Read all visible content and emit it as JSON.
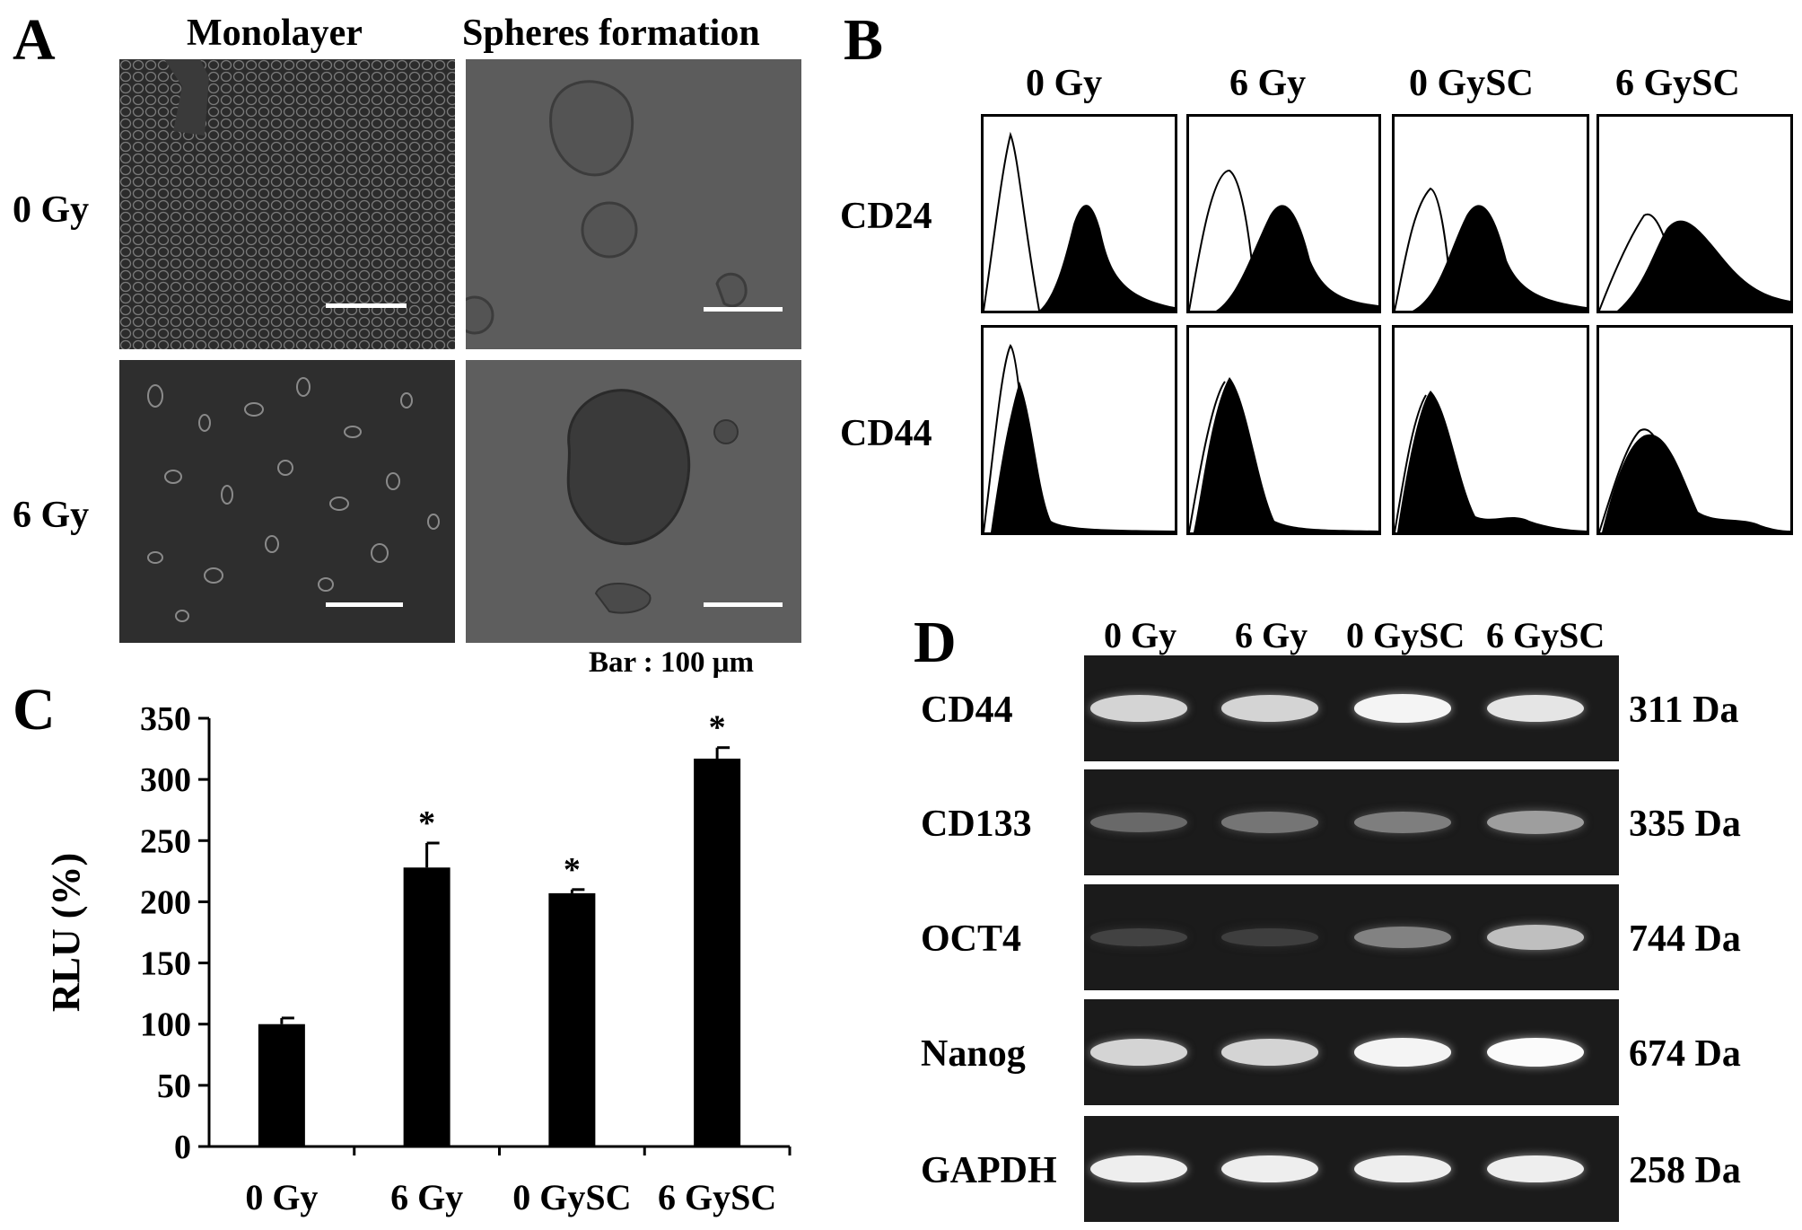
{
  "panelA": {
    "letter": "A",
    "col_headers": [
      "Monolayer",
      "Spheres formation"
    ],
    "row_labels": [
      "0 Gy",
      "6 Gy"
    ],
    "scale_note": "Bar : 100 μm"
  },
  "panelB": {
    "letter": "B",
    "col_headers": [
      "0 Gy",
      "6 Gy",
      "0 GySC",
      "6 GySC"
    ],
    "row_labels": [
      "CD24",
      "CD44"
    ]
  },
  "panelC": {
    "letter": "C",
    "ylabel": "RLU (%)",
    "significance_mark": "*"
  },
  "panelD": {
    "letter": "D",
    "lane_labels": [
      "0 Gy",
      "6 Gy",
      "0 GySC",
      "6 GySC"
    ],
    "genes": [
      "CD44",
      "CD133",
      "OCT4",
      "Nanog",
      "GAPDH"
    ],
    "sizes": [
      "311 Da",
      "335 Da",
      "744 Da",
      "674 Da",
      "258 Da"
    ],
    "intensities": [
      [
        0.8,
        0.8,
        0.95,
        0.88
      ],
      [
        0.3,
        0.36,
        0.4,
        0.55
      ],
      [
        0.12,
        0.1,
        0.42,
        0.7
      ],
      [
        0.8,
        0.8,
        0.95,
        0.98
      ],
      [
        0.92,
        0.92,
        0.92,
        0.92
      ]
    ]
  },
  "chart_data": {
    "type": "bar",
    "categories": [
      "0 Gy",
      "6 Gy",
      "0 GySC",
      "6 GySC"
    ],
    "values": [
      100,
      228,
      207,
      317
    ],
    "errors": [
      5,
      20,
      3,
      9
    ],
    "significant": [
      false,
      true,
      true,
      true
    ],
    "title": "",
    "xlabel": "",
    "ylabel": "RLU (%)",
    "ylim": [
      0,
      350
    ],
    "yticks": [
      0,
      50,
      100,
      150,
      200,
      250,
      300,
      350
    ],
    "bar_color": "#000000"
  }
}
